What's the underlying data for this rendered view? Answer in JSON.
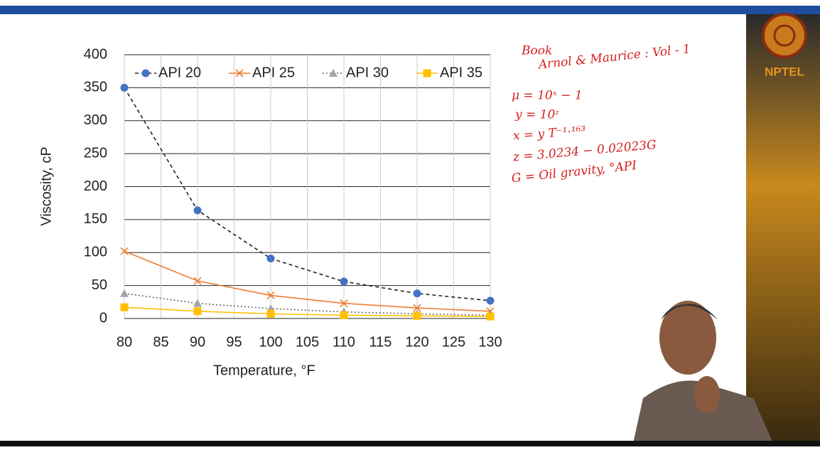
{
  "logo": "NPTEL",
  "chart_data": {
    "type": "line",
    "x": [
      80,
      90,
      100,
      110,
      120,
      130
    ],
    "series": [
      {
        "name": "API 20",
        "color": "#4472c4",
        "line_color": "#222222",
        "marker": "circle",
        "dash": "5,4",
        "values": [
          350,
          164,
          91,
          56,
          38,
          27
        ]
      },
      {
        "name": "API 25",
        "color": "#ed7d31",
        "line_color": "#ed7d31",
        "marker": "x",
        "dash": "none",
        "values": [
          102,
          57,
          35,
          23,
          16,
          11
        ]
      },
      {
        "name": "API 30",
        "color": "#a5a5a5",
        "line_color": "#666666",
        "marker": "triangle",
        "dash": "2,3",
        "values": [
          38,
          23,
          15,
          10,
          7,
          5
        ]
      },
      {
        "name": "API 35",
        "color": "#ffc000",
        "line_color": "#ffc000",
        "marker": "square",
        "dash": "none",
        "values": [
          17,
          11,
          7,
          5,
          4,
          3
        ]
      }
    ],
    "xlim": [
      80,
      130
    ],
    "xticks": [
      80,
      85,
      90,
      95,
      100,
      105,
      110,
      115,
      120,
      125,
      130
    ],
    "ylim": [
      0,
      400
    ],
    "yticks": [
      0,
      50,
      100,
      150,
      200,
      250,
      300,
      350,
      400
    ],
    "grid": true,
    "legend": "top",
    "xlabel": "Temperature, °F",
    "ylabel": "Viscosity, cP",
    "annotations": [
      "Book",
      "Arnol & Maurice : Vol - 1",
      "μ = 10ˣ − 1",
      "y = 10ᶻ",
      "x = y T⁻¹·¹⁶³",
      "z = 3.0234 − 0.02023G",
      "G = Oil gravity, °API"
    ]
  }
}
